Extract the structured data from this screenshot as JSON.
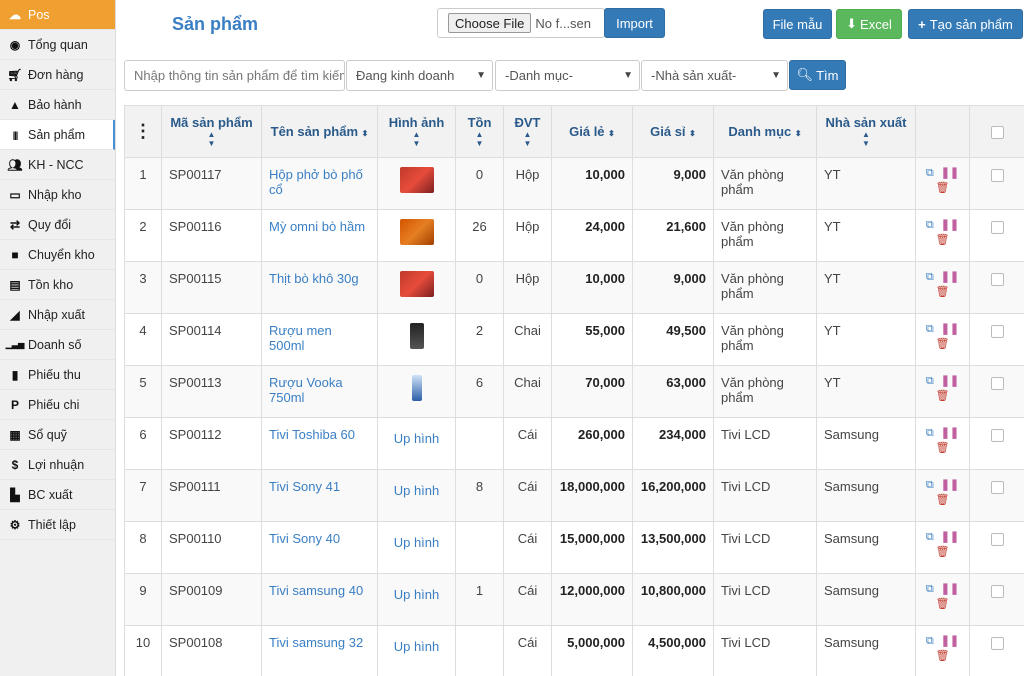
{
  "sidebar": {
    "items": [
      {
        "label": "Pos",
        "icon": "cloud-icon"
      },
      {
        "label": "Tổng quan",
        "icon": "dashboard-icon"
      },
      {
        "label": "Đơn hàng",
        "icon": "cart-icon"
      },
      {
        "label": "Bảo hành",
        "icon": "warning-icon"
      },
      {
        "label": "Sản phẩm",
        "icon": "barcode-icon"
      },
      {
        "label": "KH - NCC",
        "icon": "users-icon"
      },
      {
        "label": "Nhập kho",
        "icon": "inbox-icon"
      },
      {
        "label": "Quy đổi",
        "icon": "exchange-icon"
      },
      {
        "label": "Chuyển kho",
        "icon": "truck-icon"
      },
      {
        "label": "Tồn kho",
        "icon": "list-icon"
      },
      {
        "label": "Nhập xuất",
        "icon": "area-chart-icon"
      },
      {
        "label": "Doanh số",
        "icon": "signal-icon"
      },
      {
        "label": "Phiếu thu",
        "icon": "file-icon"
      },
      {
        "label": "Phiếu chi",
        "icon": "paypal-icon"
      },
      {
        "label": "Sổ quỹ",
        "icon": "calculator-icon"
      },
      {
        "label": "Lợi nhuận",
        "icon": "dollar-icon"
      },
      {
        "label": "BC xuất",
        "icon": "bar-chart-icon"
      },
      {
        "label": "Thiết lập",
        "icon": "cogs-icon"
      }
    ]
  },
  "header": {
    "title": "Sản phẩm",
    "file_button": "Choose File",
    "file_name": "No f...sen",
    "import": "Import",
    "file_mau": "File mẫu",
    "excel": "Excel",
    "create": "Tạo sản phẩm"
  },
  "filters": {
    "search_placeholder": "Nhập thông tin sản phẩm để tìm kiếm",
    "status": "Đang kinh doanh",
    "category": "-Danh mục-",
    "manufacturer": "-Nhà sản xuất-",
    "search_button": "Tìm"
  },
  "table": {
    "columns": [
      "Mã sản phẩm",
      "Tên sản phẩm",
      "Hình ảnh",
      "Tồn",
      "ĐVT",
      "Giá lẻ",
      "Giá sỉ",
      "Danh mục",
      "Nhà sản xuất"
    ],
    "upload_label": "Up hình",
    "rows": [
      {
        "no": "1",
        "code": "SP00117",
        "name": "Hộp phở bò phố cổ",
        "image": "noodle-box",
        "stock": "0",
        "unit": "Hộp",
        "retail": "10,000",
        "wholesale": "9,000",
        "category": "Văn phòng phẩm",
        "mfr": "YT"
      },
      {
        "no": "2",
        "code": "SP00116",
        "name": "Mỳ omni bò hầm",
        "image": "noodle-carton",
        "stock": "26",
        "unit": "Hộp",
        "retail": "24,000",
        "wholesale": "21,600",
        "category": "Văn phòng phẩm",
        "mfr": "YT"
      },
      {
        "no": "3",
        "code": "SP00115",
        "name": "Thịt bò khô 30g",
        "image": "beef-pack",
        "stock": "0",
        "unit": "Hộp",
        "retail": "10,000",
        "wholesale": "9,000",
        "category": "Văn phòng phẩm",
        "mfr": "YT"
      },
      {
        "no": "4",
        "code": "SP00114",
        "name": "Rượu men 500ml",
        "image": "wine-bottle",
        "stock": "2",
        "unit": "Chai",
        "retail": "55,000",
        "wholesale": "49,500",
        "category": "Văn phòng phẩm",
        "mfr": "YT"
      },
      {
        "no": "5",
        "code": "SP00113",
        "name": "Rượu Vooka 750ml",
        "image": "vodka-bottle",
        "stock": "6",
        "unit": "Chai",
        "retail": "70,000",
        "wholesale": "63,000",
        "category": "Văn phòng phẩm",
        "mfr": "YT"
      },
      {
        "no": "6",
        "code": "SP00112",
        "name": "Tivi Toshiba 60",
        "image": "",
        "stock": "",
        "unit": "Cái",
        "retail": "260,000",
        "wholesale": "234,000",
        "category": "Tivi LCD",
        "mfr": "Samsung"
      },
      {
        "no": "7",
        "code": "SP00111",
        "name": "Tivi Sony 41",
        "image": "",
        "stock": "8",
        "unit": "Cái",
        "retail": "18,000,000",
        "wholesale": "16,200,000",
        "category": "Tivi LCD",
        "mfr": "Samsung"
      },
      {
        "no": "8",
        "code": "SP00110",
        "name": "Tivi Sony 40",
        "image": "",
        "stock": "",
        "unit": "Cái",
        "retail": "15,000,000",
        "wholesale": "13,500,000",
        "category": "Tivi LCD",
        "mfr": "Samsung"
      },
      {
        "no": "9",
        "code": "SP00109",
        "name": "Tivi samsung 40",
        "image": "",
        "stock": "1",
        "unit": "Cái",
        "retail": "12,000,000",
        "wholesale": "10,800,000",
        "category": "Tivi LCD",
        "mfr": "Samsung"
      },
      {
        "no": "10",
        "code": "SP00108",
        "name": "Tivi samsung 32",
        "image": "",
        "stock": "",
        "unit": "Cái",
        "retail": "5,000,000",
        "wholesale": "4,500,000",
        "category": "Tivi LCD",
        "mfr": "Samsung"
      }
    ]
  },
  "colors": {
    "accent": "#337ab7",
    "active_menu": "#f0a030",
    "excel": "#5cb85c",
    "link": "#3a7fc4"
  }
}
